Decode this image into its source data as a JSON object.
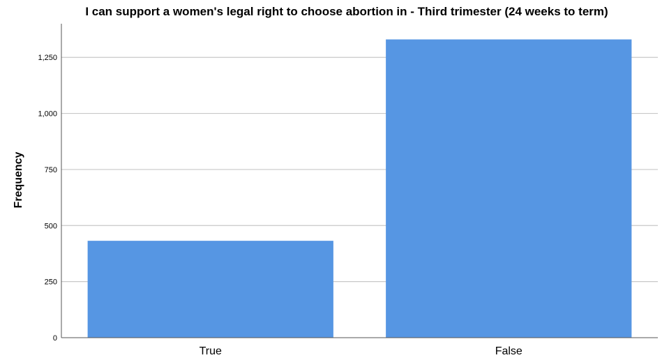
{
  "chart_data": {
    "type": "bar",
    "title": "I can support a women's legal right to choose abortion in - Third trimester (24 weeks to term)",
    "xlabel": "",
    "ylabel": "Frequency",
    "categories": [
      "True",
      "False"
    ],
    "values": [
      432,
      1330
    ],
    "ylim": [
      0,
      1400
    ],
    "yticks": [
      0,
      250,
      500,
      750,
      1000,
      1250
    ],
    "ytick_labels": [
      "0",
      "250",
      "500",
      "750",
      "1,000",
      "1,250"
    ],
    "grid": true,
    "bar_color": "#5696e3"
  }
}
